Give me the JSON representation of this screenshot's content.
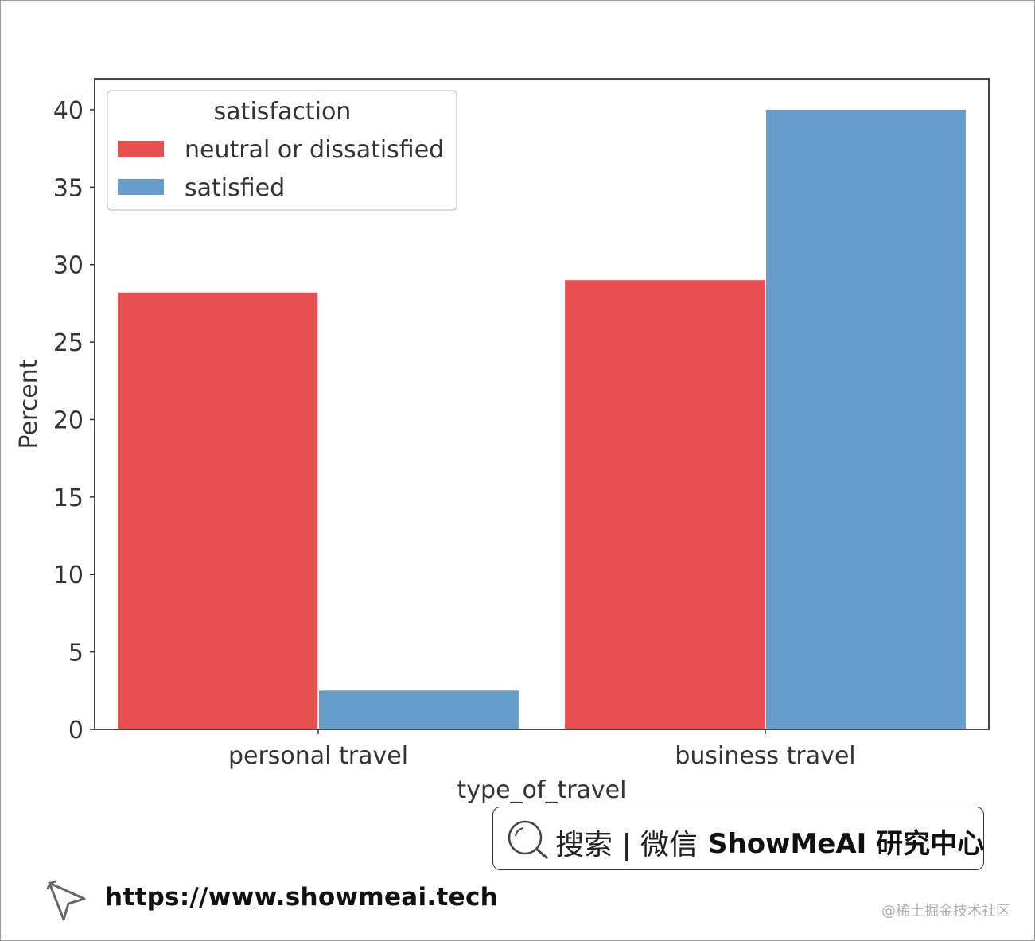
{
  "chart_data": {
    "type": "bar",
    "categories": [
      "personal travel",
      "business travel"
    ],
    "series": [
      {
        "name": "neutral or dissatisfied",
        "values": [
          28.2,
          29.0
        ],
        "color": "#e85050"
      },
      {
        "name": "satisfied",
        "values": [
          2.5,
          40.0
        ],
        "color": "#679dcc"
      }
    ],
    "xlabel": "type_of_travel",
    "ylabel": "Percent",
    "ylim": [
      0,
      42
    ],
    "yticks": [
      0,
      5,
      10,
      15,
      20,
      25,
      30,
      35,
      40
    ],
    "legend_title": "satisfaction",
    "legend_position": "top-left",
    "grid": false
  },
  "footer": {
    "search_text": "搜索 | 微信",
    "brand_text": "ShowMeAI 研究中心",
    "url": "https://www.showmeai.tech",
    "watermark": "@稀土掘金技术社区"
  },
  "icons": {
    "search": "search-icon",
    "pointer": "cursor-pointer-icon"
  }
}
